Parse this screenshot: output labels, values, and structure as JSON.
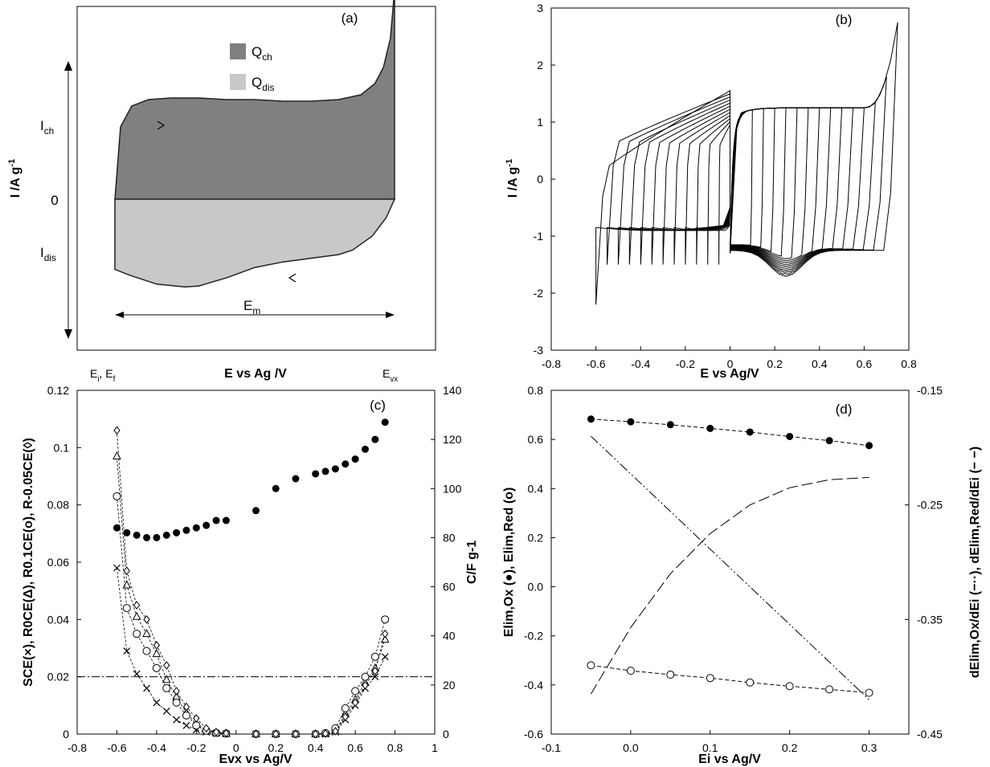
{
  "colors": {
    "charge": "#808080",
    "discharge": "#c8c8c8",
    "axis": "#000000"
  },
  "chart_data": [
    {
      "panel_label": "(a)",
      "type": "area",
      "xlabel": "E vs Ag /V",
      "ylabel": "I /A g-1",
      "y_zero_label": "0",
      "legend": [
        {
          "key": "charge",
          "label": "Q",
          "sub": "ch"
        },
        {
          "key": "discharge",
          "label": "Q",
          "sub": "dis"
        }
      ],
      "legend_position": "top-center",
      "x_marks": [
        {
          "label": "E",
          "sub": "i",
          "suffix": ", E",
          "sub2": "f"
        },
        {
          "label": "E",
          "sub": "vx"
        }
      ],
      "arrow_labels": [
        {
          "label": "I",
          "sub": "ch"
        },
        {
          "label": "I",
          "sub": "dis"
        },
        {
          "label": "E",
          "sub": "m"
        }
      ],
      "xlim": [
        0,
        1
      ],
      "ylim": [
        -1,
        1
      ],
      "charge_curve": {
        "x": [
          0,
          0.02,
          0.06,
          0.12,
          0.2,
          0.3,
          0.4,
          0.5,
          0.6,
          0.7,
          0.8,
          0.88,
          0.93,
          0.96,
          0.985,
          1.0
        ],
        "y": [
          0,
          0.45,
          0.58,
          0.62,
          0.63,
          0.63,
          0.62,
          0.62,
          0.61,
          0.61,
          0.62,
          0.65,
          0.72,
          0.82,
          1.0,
          1.3
        ]
      },
      "discharge_curve": {
        "x": [
          0,
          0.05,
          0.15,
          0.25,
          0.3,
          0.4,
          0.5,
          0.6,
          0.7,
          0.8,
          0.85,
          0.92,
          0.97,
          1.0
        ],
        "y": [
          -0.76,
          -0.82,
          -0.92,
          -0.95,
          -0.94,
          -0.85,
          -0.74,
          -0.68,
          -0.64,
          -0.6,
          -0.55,
          -0.4,
          -0.2,
          0
        ]
      }
    },
    {
      "panel_label": "(b)",
      "type": "line",
      "xlabel": "E vs Ag/V",
      "ylabel": "I /A g-1",
      "xlim": [
        -0.8,
        0.8
      ],
      "ylim": [
        -3,
        3
      ],
      "xticks": [
        "-0.8",
        "-0.6",
        "-0.4",
        "-0.2",
        "0",
        "0.2",
        "0.4",
        "0.6",
        "0.8"
      ],
      "yticks": [
        "-3",
        "-2",
        "-1",
        "0",
        "1",
        "2",
        "3"
      ],
      "negative_vertex_potentials": [
        -0.6,
        -0.55,
        -0.5,
        -0.45,
        -0.4,
        -0.35,
        -0.3,
        -0.25,
        -0.2,
        -0.15,
        -0.1,
        -0.05
      ],
      "positive_vertex_potentials": [
        0.1,
        0.15,
        0.2,
        0.25,
        0.3,
        0.35,
        0.4,
        0.45,
        0.5,
        0.55,
        0.6,
        0.65,
        0.7,
        0.75
      ]
    },
    {
      "panel_label": "(c)",
      "type": "scatter",
      "xlabel": "Evx vs Ag/V",
      "ylabel": "SCE(×), R0CE(Δ), R0.1CE(o), R-0.05CE(◊)",
      "y2label": "C/F g-1",
      "xlim": [
        -0.8,
        1.0
      ],
      "ylim": [
        0,
        0.12
      ],
      "y2lim": [
        0,
        140
      ],
      "xticks": [
        "-0.8",
        "-0.6",
        "-0.4",
        "-0.2",
        "0",
        "0.2",
        "0.4",
        "0.6",
        "0.8",
        "1"
      ],
      "yticks": [
        "0",
        "0.02",
        "0.04",
        "0.06",
        "0.08",
        "0.1",
        "0.12"
      ],
      "y2ticks": [
        "0",
        "20",
        "40",
        "60",
        "80",
        "100",
        "120",
        "140"
      ],
      "threshold_line": 0.02,
      "x": [
        -0.6,
        -0.55,
        -0.5,
        -0.45,
        -0.4,
        -0.35,
        -0.3,
        -0.25,
        -0.2,
        -0.15,
        -0.1,
        -0.05,
        0.1,
        0.2,
        0.3,
        0.4,
        0.45,
        0.5,
        0.55,
        0.6,
        0.65,
        0.7,
        0.75
      ],
      "series": [
        {
          "marker": "filled-circle",
          "axis": "right",
          "values": [
            84,
            82,
            81,
            80,
            80,
            81,
            82,
            83,
            84,
            85,
            87,
            87,
            91,
            100,
            104,
            106,
            107,
            108,
            110,
            112,
            116,
            120,
            127
          ]
        },
        {
          "marker": "cross",
          "values": [
            0.058,
            0.029,
            0.021,
            0.016,
            0.011,
            0.008,
            0.005,
            0.003,
            0.0015,
            0.0007,
            0.0002,
            0.0001,
            0.0,
            0.0,
            0.0,
            0.0,
            0.0,
            0.0007,
            0.005,
            0.01,
            0.016,
            0.02,
            0.027
          ]
        },
        {
          "marker": "triangle",
          "values": [
            0.097,
            0.052,
            0.041,
            0.035,
            0.028,
            0.019,
            0.013,
            0.0075,
            0.0035,
            0.0015,
            0.0005,
            0.0002,
            0.0,
            0.0,
            0.0,
            0.0,
            0.0002,
            0.001,
            0.007,
            0.012,
            0.018,
            0.023,
            0.033
          ]
        },
        {
          "marker": "open-circle",
          "values": [
            0.083,
            0.044,
            0.035,
            0.029,
            0.023,
            0.016,
            0.011,
            0.0065,
            0.003,
            0.0012,
            0.0004,
            0.0002,
            0.0,
            0.0,
            0.0,
            0.0,
            0.0003,
            0.002,
            0.009,
            0.015,
            0.02,
            0.027,
            0.04
          ]
        },
        {
          "marker": "diamond",
          "values": [
            0.106,
            0.057,
            0.045,
            0.04,
            0.031,
            0.024,
            0.015,
            0.0095,
            0.0055,
            0.002,
            0.0007,
            0.0003,
            0.0,
            0.0,
            0.0,
            0.0,
            0.0002,
            0.001,
            0.006,
            0.011,
            0.017,
            0.022,
            0.035
          ]
        }
      ]
    },
    {
      "panel_label": "(d)",
      "type": "scatter",
      "xlabel": "Ei vs Ag/V",
      "ylabel": "Elim,Ox (●), Elim,Red (o)",
      "y2label": "dElim,Ox/dEi (−··), dElim,Red/dEi (− −)",
      "xlim": [
        -0.1,
        0.35
      ],
      "ylim": [
        -0.6,
        0.8
      ],
      "y2lim": [
        -0.45,
        -0.15
      ],
      "xticks": [
        "-0.1",
        "0.0",
        "0.1",
        "0.2",
        "0.3"
      ],
      "yticks": [
        "-0.6",
        "-0.4",
        "-0.2",
        "0.0",
        "0.2",
        "0.4",
        "0.6",
        "0.8"
      ],
      "y2ticks": [
        "-0.45",
        "-0.35",
        "-0.25",
        "-0.15"
      ],
      "x": [
        -0.05,
        0.0,
        0.05,
        0.1,
        0.15,
        0.2,
        0.25,
        0.3
      ],
      "series": [
        {
          "marker": "filled-circle",
          "values": [
            0.683,
            0.672,
            0.66,
            0.645,
            0.63,
            0.612,
            0.595,
            0.575
          ]
        },
        {
          "marker": "open-circle",
          "values": [
            -0.32,
            -0.342,
            -0.358,
            -0.372,
            -0.39,
            -0.405,
            -0.418,
            -0.432
          ]
        },
        {
          "style": "dash-dot-dot",
          "axis": "right",
          "x": [
            -0.05,
            0.3
          ],
          "values": [
            -0.19,
            -0.42
          ]
        },
        {
          "style": "long-dash",
          "axis": "right",
          "x": [
            -0.05,
            0.0,
            0.05,
            0.1,
            0.15,
            0.2,
            0.25,
            0.3
          ],
          "values": [
            -0.415,
            -0.357,
            -0.31,
            -0.275,
            -0.25,
            -0.235,
            -0.228,
            -0.226
          ]
        }
      ]
    }
  ]
}
